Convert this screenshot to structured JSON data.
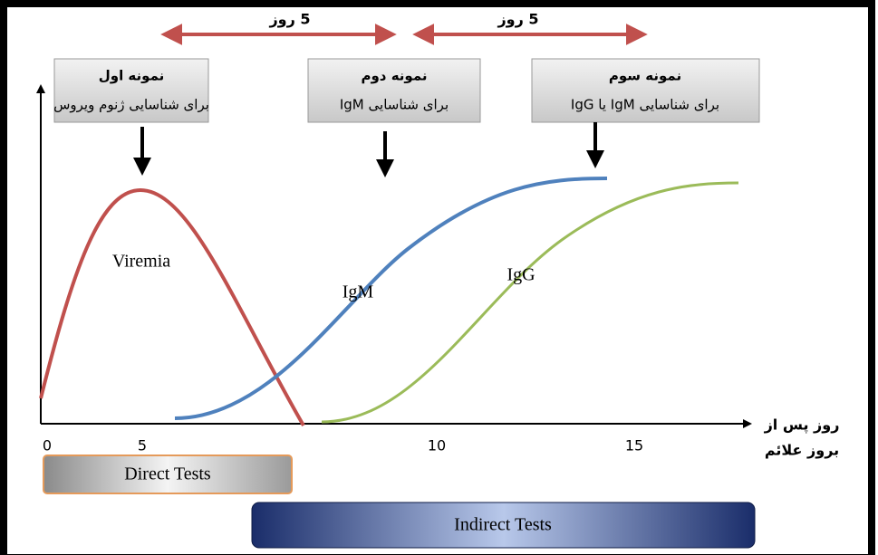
{
  "intervals": [
    {
      "label": "5 روز"
    },
    {
      "label": "5 روز"
    }
  ],
  "samples": [
    {
      "title": "نمونه اول",
      "subtitle": "برای شناسایی ژنوم ویروس"
    },
    {
      "title": "نمونه دوم",
      "subtitle": "برای شناسایی IgM"
    },
    {
      "title": "نمونه سوم",
      "subtitle": "برای شناسایی IgM یا IgG"
    }
  ],
  "curves": [
    {
      "label": "Viremia"
    },
    {
      "label": "IgM"
    },
    {
      "label": "IgG"
    }
  ],
  "axis": {
    "label_lines": [
      "روز پس از",
      "بروز علائم"
    ],
    "ticks": [
      0,
      5,
      10,
      15
    ]
  },
  "bars": [
    {
      "label": "Direct Tests"
    },
    {
      "label": "Indirect Tests"
    }
  ]
}
